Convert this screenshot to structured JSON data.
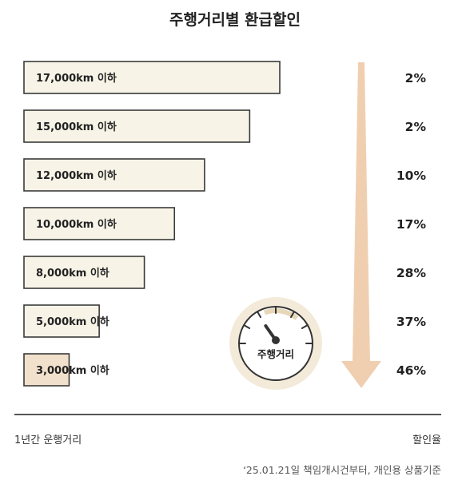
{
  "title": "주행거리별 환급할인",
  "colors": {
    "bar_fill": "#f7f4e7",
    "bar_highlight_fill": "#f1e0cb",
    "bar_stroke": "#3a3a3a",
    "arrow": "#f0cfb0",
    "gauge_ring": "#f3ead9",
    "gauge_accent": "#e7d7b8"
  },
  "gauge": {
    "label": "주행거리",
    "icon": "speedometer-icon"
  },
  "footer": {
    "left_label": "1년간 운행거리",
    "right_label": "할인율",
    "note": "‘25.01.21일 책임개시건부터, 개인용 상품기준"
  },
  "chart_data": {
    "type": "bar",
    "orientation": "horizontal",
    "categories": [
      "17,000km 이하",
      "15,000km 이하",
      "12,000km 이하",
      "10,000km 이하",
      "8,000km 이하",
      "5,000km 이하",
      "3,000km 이하"
    ],
    "series": [
      {
        "values": [
          2,
          2,
          10,
          17,
          28,
          37,
          46
        ]
      }
    ],
    "value_labels": [
      "2%",
      "2%",
      "10%",
      "17%",
      "28%",
      "37%",
      "46%"
    ],
    "bar_lengths_km": [
      17000,
      15000,
      12000,
      10000,
      8000,
      5000,
      3000
    ],
    "xlabel": "1년간 운행거리",
    "ylabel": "할인율",
    "highlight_index": 6
  }
}
